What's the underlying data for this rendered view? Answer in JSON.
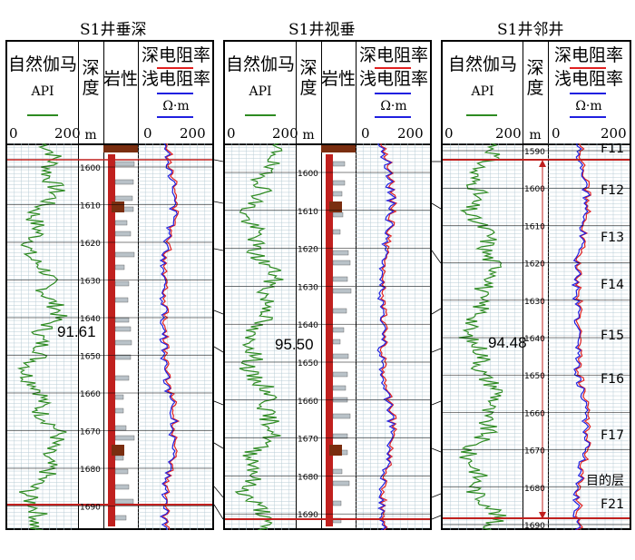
{
  "panels": [
    {
      "title": "S1井垂深",
      "gamma_label": "自然伽马",
      "gamma_unit": "API",
      "depth_label": "深度",
      "depth_unit": "m",
      "lith_label": "岩性",
      "deep_label": "深电阻率",
      "shallow_label": "浅电阻率",
      "res_unit": "Ω·m",
      "scale_min": "0",
      "scale_max": "200",
      "depth_ticks": [
        "1600",
        "1610",
        "1620",
        "1630",
        "1640",
        "1650",
        "1660",
        "1670",
        "1680",
        "1690"
      ],
      "value": "91.61"
    },
    {
      "title": "S1井视垂",
      "gamma_label": "自然伽马",
      "gamma_unit": "API",
      "depth_label": "深度",
      "depth_unit": "m",
      "lith_label": "岩性",
      "deep_label": "深电阻率",
      "shallow_label": "浅电阻率",
      "res_unit": "Ω·m",
      "scale_min": "0",
      "scale_max": "200",
      "depth_ticks": [
        "1600",
        "1610",
        "1620",
        "1630",
        "1640",
        "1650",
        "1660",
        "1670",
        "1680",
        "1690"
      ],
      "value": "95.50"
    },
    {
      "title": "S1井邻井",
      "gamma_label": "自然伽马",
      "gamma_unit": "API",
      "depth_label": "深度",
      "depth_unit": "m",
      "deep_label": "深电阻率",
      "shallow_label": "浅电阻率",
      "res_unit": "Ω·m",
      "scale_min": "0",
      "scale_max": "200",
      "depth_ticks": [
        "1590",
        "1600",
        "1610",
        "1620",
        "1630",
        "1640",
        "1650",
        "1660",
        "1670",
        "1680",
        "1690"
      ],
      "value": "94.48"
    }
  ],
  "layers": [
    "F11",
    "F12",
    "F13",
    "F14",
    "F15",
    "F16",
    "F17",
    "目的层",
    "F21"
  ],
  "colors": {
    "gamma": "#2e8b22",
    "deep": "#e02020",
    "shallow": "#2020e0",
    "grid": "#9bb8c8",
    "lith": "#c0201e",
    "brown": "#7a2e10"
  }
}
